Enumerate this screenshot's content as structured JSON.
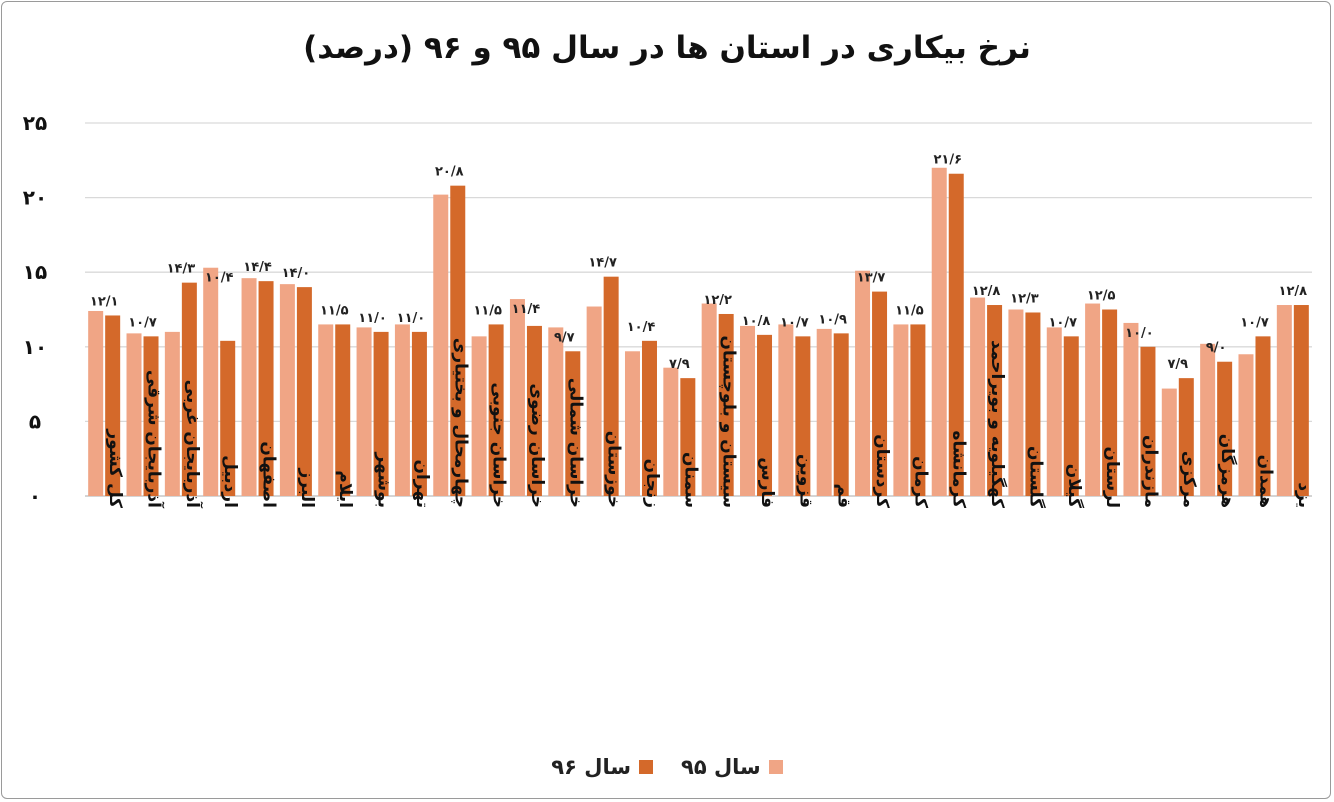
{
  "chart_data": {
    "type": "bar",
    "title": "نرخ بیکاری در استان ها در سال ۹۵ و ۹۶ (درصد)",
    "xlabel": "",
    "ylabel": "",
    "ylim": [
      0,
      25
    ],
    "yticks": [
      0,
      5,
      10,
      15,
      20,
      25
    ],
    "ytick_labels": [
      "۰",
      "۵",
      "۱۰",
      "۱۵",
      "۲۰",
      "۲۵"
    ],
    "grid": true,
    "legend_position": "bottom",
    "categories": [
      "کل کشور",
      "آذربایجان شرقی",
      "آذربایجان غربی",
      "اردبیل",
      "اصفهان",
      "البرز",
      "ایلام",
      "بوشهر",
      "تهران",
      "چهارمحال و بختیاری",
      "خراسان جنوبی",
      "خراسان رضوی",
      "خراسان شمالی",
      "خوزستان",
      "زنجان",
      "سمنان",
      "سیستان و بلوچستان",
      "فارس",
      "قزوین",
      "قم",
      "کردستان",
      "کرمان",
      "کرمانشاه",
      "کهگیلویه و بویراحمد",
      "گلستان",
      "گیلان",
      "لرستان",
      "مازندران",
      "مرکزی",
      "هرمزگان",
      "همدان",
      "یزد"
    ],
    "series": [
      {
        "name": "سال ۹۵",
        "color": "#f0a585",
        "values": [
          12.4,
          10.9,
          11.0,
          15.3,
          14.6,
          14.2,
          11.5,
          11.3,
          11.5,
          20.2,
          10.7,
          13.2,
          11.3,
          12.7,
          9.7,
          8.6,
          12.9,
          11.4,
          11.5,
          11.2,
          15.1,
          11.5,
          22.0,
          13.3,
          12.5,
          11.3,
          12.9,
          11.6,
          7.2,
          10.2,
          9.5,
          12.8
        ]
      },
      {
        "name": "سال ۹۶",
        "color": "#d4692a",
        "values": [
          12.1,
          10.7,
          14.3,
          10.4,
          14.4,
          14.0,
          11.5,
          11.0,
          11.0,
          20.8,
          11.5,
          11.4,
          9.7,
          14.7,
          10.4,
          7.9,
          12.2,
          10.8,
          10.7,
          10.9,
          13.7,
          11.5,
          21.6,
          12.8,
          12.3,
          10.7,
          12.5,
          10.0,
          7.9,
          9.0,
          10.7,
          12.8
        ],
        "data_labels": [
          "۱۲/۱",
          "۱۰/۷",
          "۱۴/۳",
          "۱۰/۴",
          "۱۴/۴",
          "۱۴/۰",
          "۱۱/۵",
          "۱۱/۰",
          "۱۱/۰",
          "۲۰/۸",
          "۱۱/۵",
          "۱۱/۴",
          "۹/۷",
          "۱۴/۷",
          "۱۰/۴",
          "۷/۹",
          "۱۲/۲",
          "۱۰/۸",
          "۱۰/۷",
          "۱۰/۹",
          "۱۳/۷",
          "۱۱/۵",
          "۲۱/۶",
          "۱۲/۸",
          "۱۲/۳",
          "۱۰/۷",
          "۱۲/۵",
          "۱۰/۰",
          "۷/۹",
          "۹/۰",
          "۱۰/۷",
          "۱۲/۸"
        ]
      }
    ]
  }
}
